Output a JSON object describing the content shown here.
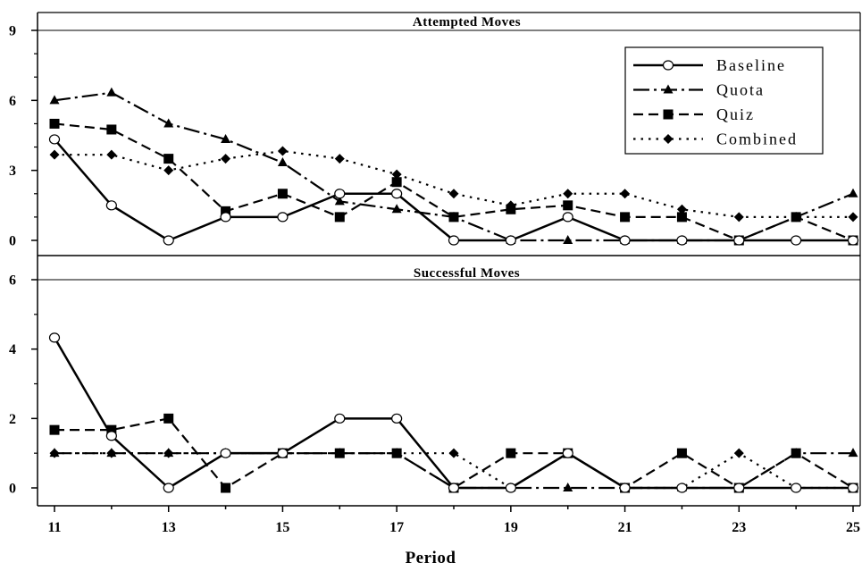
{
  "chart_data": [
    {
      "type": "line",
      "title": "Attempted Moves",
      "xlabel": "",
      "ylabel": "",
      "ylim": [
        0,
        9
      ],
      "yticks": [
        0,
        3,
        6,
        9
      ],
      "x": [
        11,
        12,
        13,
        14,
        15,
        16,
        17,
        18,
        19,
        20,
        21,
        22,
        23,
        24,
        25
      ],
      "series": [
        {
          "name": "Baseline",
          "style": "solid",
          "marker": "circle-open",
          "values": [
            4.33,
            1.5,
            0,
            1,
            1,
            2,
            2,
            0,
            0,
            1,
            0,
            0,
            0,
            0,
            0
          ]
        },
        {
          "name": "Quota",
          "style": "dashdot",
          "marker": "triangle",
          "values": [
            6,
            6.33,
            5,
            4.33,
            3.33,
            1.67,
            1.33,
            1,
            0,
            0,
            0,
            0,
            0,
            1,
            2
          ]
        },
        {
          "name": "Quiz",
          "style": "dashed",
          "marker": "square",
          "values": [
            5,
            4.75,
            3.5,
            1.25,
            2,
            1,
            2.5,
            1,
            1.33,
            1.5,
            1,
            1,
            0,
            1,
            0
          ]
        },
        {
          "name": "Combined",
          "style": "dotted",
          "marker": "diamond",
          "values": [
            3.67,
            3.67,
            3,
            3.5,
            3.83,
            3.5,
            2.83,
            2,
            1.5,
            2,
            2,
            1.33,
            1,
            1,
            1
          ]
        }
      ],
      "legend": {
        "position": "top-right",
        "entries": [
          "Baseline",
          "Quota",
          "Quiz",
          "Combined"
        ]
      },
      "grid": false
    },
    {
      "type": "line",
      "title": "Successful Moves",
      "xlabel": "Period",
      "ylabel": "",
      "ylim": [
        0,
        6
      ],
      "yticks": [
        0,
        2,
        4,
        6
      ],
      "x": [
        11,
        12,
        13,
        14,
        15,
        16,
        17,
        18,
        19,
        20,
        21,
        22,
        23,
        24,
        25
      ],
      "xtick_labels": [
        "11",
        "13",
        "15",
        "17",
        "19",
        "21",
        "23",
        "25"
      ],
      "series": [
        {
          "name": "Baseline",
          "style": "solid",
          "marker": "circle-open",
          "values": [
            4.33,
            1.5,
            0,
            1,
            1,
            2,
            2,
            0,
            0,
            1,
            0,
            0,
            0,
            0,
            0
          ]
        },
        {
          "name": "Quota",
          "style": "dashdot",
          "marker": "triangle",
          "values": [
            1,
            1,
            1,
            1,
            1,
            1,
            1,
            0,
            0,
            0,
            0,
            0,
            0,
            1,
            1
          ]
        },
        {
          "name": "Quiz",
          "style": "dashed",
          "marker": "square",
          "values": [
            1.67,
            1.67,
            2,
            0,
            1,
            1,
            1,
            0,
            1,
            1,
            0,
            1,
            0,
            1,
            0
          ]
        },
        {
          "name": "Combined",
          "style": "dotted",
          "marker": "diamond",
          "values": [
            1,
            1,
            1,
            1,
            1,
            1,
            1,
            1,
            0,
            1,
            0,
            0,
            1,
            0,
            0
          ]
        }
      ],
      "grid": false
    }
  ],
  "colors": {
    "line": "#000000",
    "background": "#ffffff"
  }
}
